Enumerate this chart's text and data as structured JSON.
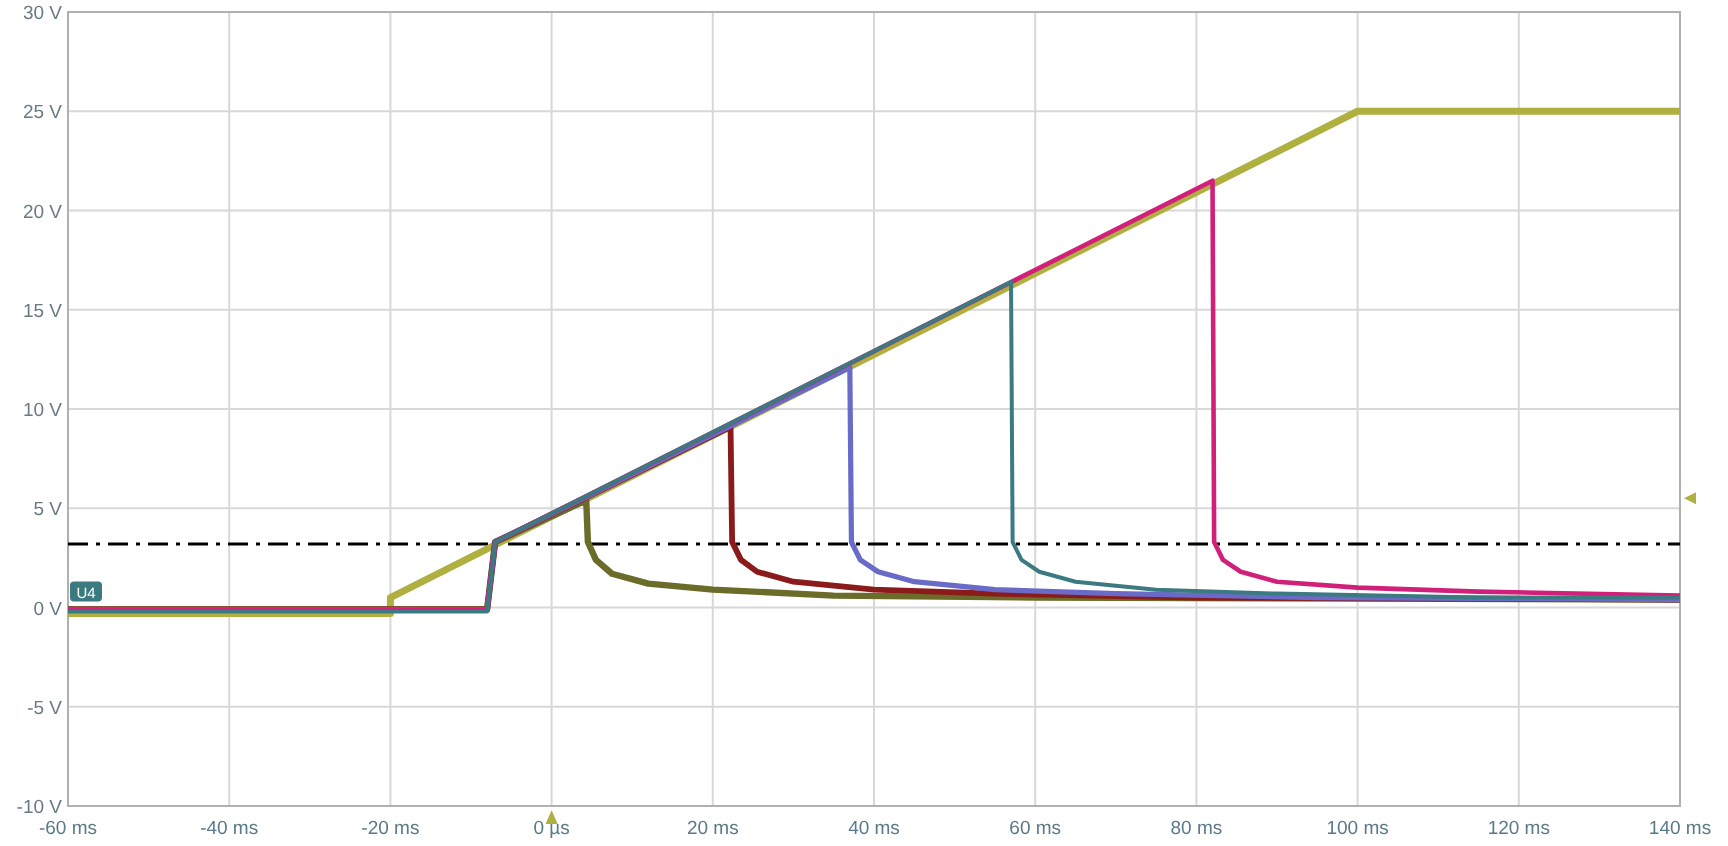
{
  "chart_data": {
    "type": "line",
    "xlim": [
      -60,
      140
    ],
    "ylim": [
      -10,
      30
    ],
    "xticks": [
      {
        "value": -60,
        "label": "-60 ms"
      },
      {
        "value": -40,
        "label": "-40 ms"
      },
      {
        "value": -20,
        "label": "-20 ms"
      },
      {
        "value": 0,
        "label": "0 µs"
      },
      {
        "value": 20,
        "label": "20 ms"
      },
      {
        "value": 40,
        "label": "40 ms"
      },
      {
        "value": 60,
        "label": "60 ms"
      },
      {
        "value": 80,
        "label": "80 ms"
      },
      {
        "value": 100,
        "label": "100 ms"
      },
      {
        "value": 120,
        "label": "120 ms"
      },
      {
        "value": 140,
        "label": "140 ms"
      }
    ],
    "yticks": [
      {
        "value": -10,
        "label": "-10 V"
      },
      {
        "value": -5,
        "label": "-5 V"
      },
      {
        "value": 0,
        "label": "0 V"
      },
      {
        "value": 5,
        "label": "5 V"
      },
      {
        "value": 10,
        "label": "10 V"
      },
      {
        "value": 15,
        "label": "15 V"
      },
      {
        "value": 20,
        "label": "20 V"
      },
      {
        "value": 25,
        "label": "25 V"
      },
      {
        "value": 30,
        "label": "30 V"
      }
    ],
    "grid": true,
    "series": [
      {
        "color": "#b0b040",
        "x": [
          -60,
          -20,
          -20,
          100,
          140
        ],
        "values": [
          -0.3,
          -0.3,
          0.5,
          25,
          25
        ]
      },
      {
        "color": "#6b6b2a",
        "x": [
          -60,
          -8,
          -7,
          4.3,
          4.5,
          5.5,
          7.5,
          12,
          20,
          35,
          60,
          140
        ],
        "values": [
          -0.1,
          -0.1,
          3.3,
          5.4,
          3.3,
          2.4,
          1.7,
          1.2,
          0.9,
          0.6,
          0.5,
          0.4
        ]
      },
      {
        "color": "#8b1a1a",
        "x": [
          -60,
          -8,
          -7,
          22.2,
          22.4,
          23.5,
          25.5,
          30,
          40,
          55,
          80,
          140
        ],
        "values": [
          -0.1,
          -0.1,
          3.3,
          9.1,
          3.3,
          2.4,
          1.8,
          1.3,
          0.9,
          0.7,
          0.5,
          0.4
        ]
      },
      {
        "color": "#6a6ac8",
        "x": [
          -60,
          -8,
          -7,
          37,
          37.2,
          38.3,
          40.5,
          45,
          55,
          70,
          95,
          140
        ],
        "values": [
          -0.1,
          -0.1,
          3.3,
          12.1,
          3.3,
          2.4,
          1.8,
          1.3,
          0.9,
          0.7,
          0.5,
          0.4
        ]
      },
      {
        "color": "#d0207a",
        "x": [
          -60,
          -8,
          -7,
          82,
          82.2,
          83.3,
          85.5,
          90,
          100,
          115,
          140
        ],
        "values": [
          -0.1,
          -0.1,
          3.3,
          21.5,
          3.3,
          2.4,
          1.8,
          1.3,
          1.0,
          0.8,
          0.6
        ]
      },
      {
        "color": "#3a7a80",
        "x": [
          -60,
          -8,
          -7,
          57,
          57.2,
          58.3,
          60.5,
          65,
          75,
          90,
          115,
          140
        ],
        "values": [
          -0.2,
          -0.2,
          3.3,
          16.4,
          3.3,
          2.4,
          1.8,
          1.3,
          0.9,
          0.7,
          0.5,
          0.5
        ]
      }
    ],
    "ref_lines": [
      {
        "axis": "y",
        "value": 3.2,
        "color": "#000000",
        "line_style": "dashed"
      }
    ],
    "annotations": [
      {
        "text": "U4",
        "x": -60,
        "y": 0
      }
    ]
  }
}
